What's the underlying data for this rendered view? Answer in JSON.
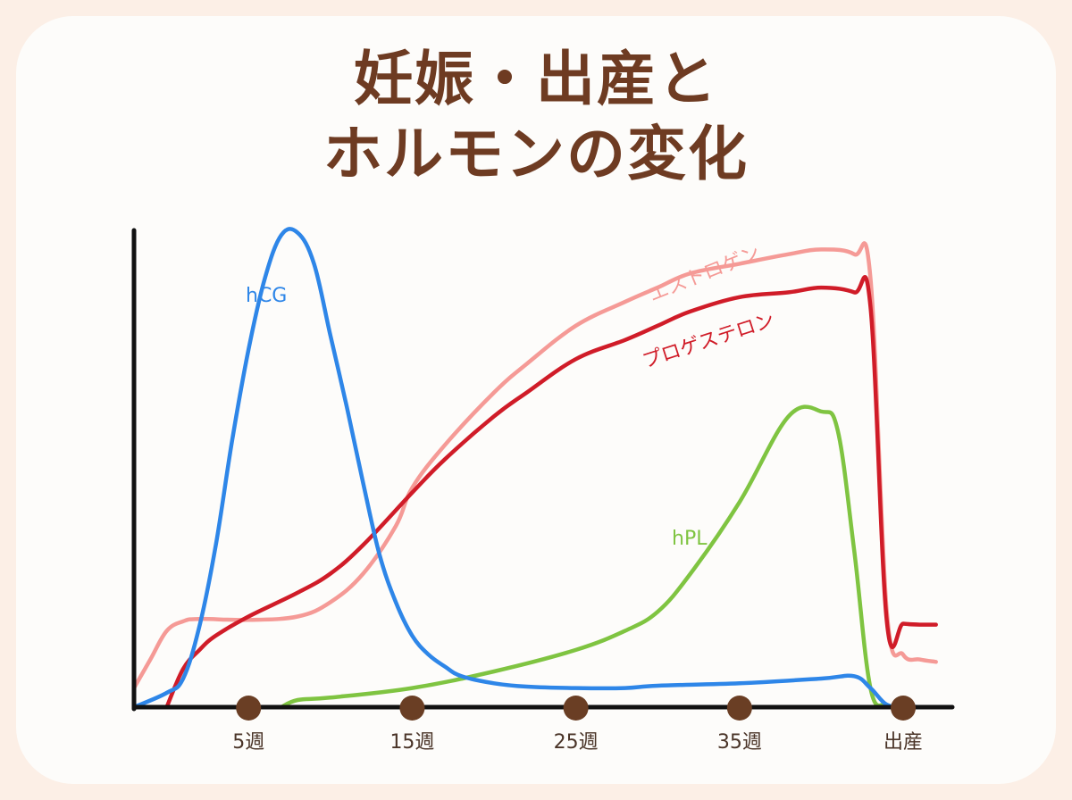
{
  "title_line1": "妊娠・出産と",
  "title_line2": "ホルモンの変化",
  "chart_data": {
    "type": "line",
    "title": "妊娠・出産とホルモンの変化",
    "x_ticks": [
      "5週",
      "15週",
      "25週",
      "35週",
      "出産"
    ],
    "x_tick_values": [
      5,
      15,
      25,
      35,
      45
    ],
    "xlim": [
      -2,
      48
    ],
    "ylim": [
      0,
      100
    ],
    "grid": false,
    "legend": "inline labels",
    "series": [
      {
        "name": "hCG",
        "color": "#2e86e8",
        "x": [
          -2,
          0,
          1,
          2,
          3,
          4,
          5,
          6,
          7,
          8,
          9,
          10,
          11,
          12,
          13,
          14,
          15,
          16,
          17,
          18,
          20,
          22,
          25,
          28,
          30,
          35,
          40,
          42,
          43,
          44,
          45,
          46
        ],
        "y": [
          0,
          3,
          6,
          17,
          34,
          56,
          75,
          90,
          99,
          99.5,
          93,
          78,
          63,
          47,
          32,
          22,
          15,
          11,
          8.5,
          6.5,
          5,
          4.3,
          4,
          4,
          4.5,
          5,
          6,
          6.5,
          4,
          0.5,
          0.3,
          0
        ]
      },
      {
        "name": "エストロゲン",
        "color": "#f59a96",
        "x": [
          -2,
          -1,
          0,
          1,
          2,
          5,
          8,
          10,
          12,
          14,
          15,
          17,
          20,
          22,
          25,
          28,
          30,
          32,
          35,
          38,
          40,
          42,
          43,
          44,
          45,
          46,
          47
        ],
        "y": [
          4,
          10,
          16,
          18,
          18.5,
          18.3,
          19,
          22,
          28,
          38,
          46,
          55,
          66,
          72,
          80,
          85,
          88,
          91,
          93,
          95,
          96,
          95,
          90,
          20,
          11,
          10,
          9.5
        ]
      },
      {
        "name": "プロゲステロン",
        "color": "#d01c28",
        "x": [
          0,
          1,
          2,
          3,
          5,
          8,
          10,
          12,
          15,
          17,
          20,
          22,
          25,
          28,
          30,
          32,
          35,
          38,
          40,
          42,
          43,
          44,
          45,
          46,
          47
        ],
        "y": [
          0,
          8,
          12,
          15,
          19,
          24,
          28,
          34,
          45,
          52,
          61,
          66,
          73,
          77,
          80,
          83,
          86,
          87,
          88,
          87,
          84,
          18,
          17.5,
          17.3,
          17.3
        ]
      },
      {
        "name": "hPL",
        "color": "#7fc441",
        "x": [
          7,
          8,
          10,
          15,
          20,
          25,
          28,
          30,
          32,
          35,
          38,
          40,
          41,
          42,
          43,
          44,
          45
        ],
        "y": [
          0,
          1.5,
          2,
          4,
          7.5,
          12,
          16,
          20,
          28,
          43,
          61,
          62,
          58,
          33,
          4,
          0.5,
          0
        ]
      }
    ]
  }
}
